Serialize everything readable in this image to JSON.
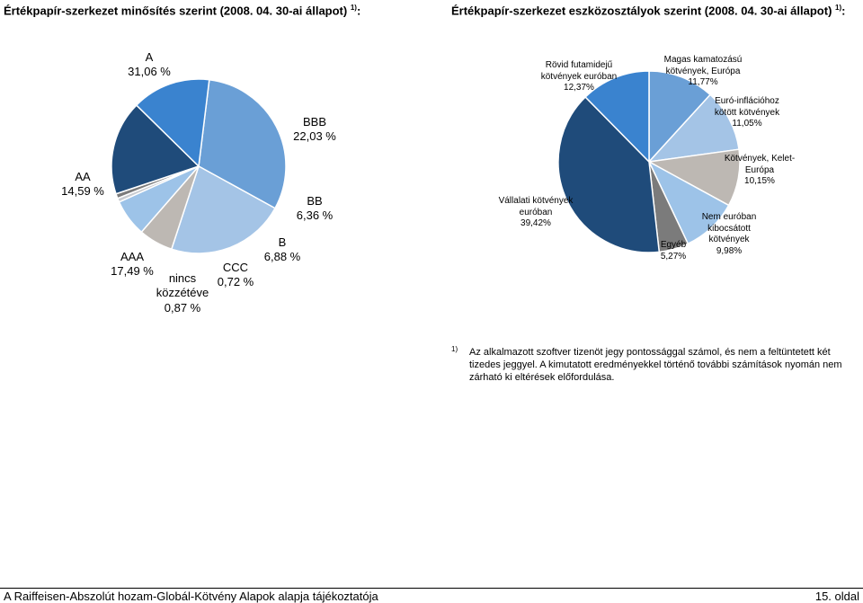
{
  "chart_data": [
    {
      "type": "pie",
      "title": "Értékpapír-szerkezet minősítés szerint (2008. 04. 30-ai állapot)",
      "title_sup": "1)",
      "title_suffix": ":",
      "slices": [
        {
          "label": "A",
          "value": 31.06,
          "display": "31,06 %",
          "color": "#6a9fd6"
        },
        {
          "label": "BBB",
          "value": 22.03,
          "display": "22,03 %",
          "color": "#a4c4e6"
        },
        {
          "label": "BB",
          "value": 6.36,
          "display": "6,36 %",
          "color": "#bdb8b3"
        },
        {
          "label": "B",
          "value": 6.88,
          "display": "6,88 %",
          "color": "#9dc3e8"
        },
        {
          "label": "CCC",
          "value": 0.72,
          "display": "0,72 %",
          "color": "#c8cbd0"
        },
        {
          "label": "nincs közzétéve",
          "value": 0.87,
          "display": "0,87 %",
          "color": "#7b7b7b"
        },
        {
          "label": "AAA",
          "value": 17.49,
          "display": "17,49 %",
          "color": "#1f4b7a"
        },
        {
          "label": "AA",
          "value": 14.59,
          "display": "14,59 %",
          "color": "#3a83cf"
        }
      ]
    },
    {
      "type": "pie",
      "title": "Értékpapír-szerkezet eszközosztályok szerint (2008. 04. 30-ai állapot)",
      "title_sup": "1)",
      "title_suffix": ":",
      "slices": [
        {
          "label": "Magas kamatozású kötvények, Európa",
          "value": 11.77,
          "display": "11,77%",
          "color": "#6a9fd6"
        },
        {
          "label": "Euró-inflációhoz kötött kötvények",
          "value": 11.05,
          "display": "11,05%",
          "color": "#a4c4e6"
        },
        {
          "label": "Kötvények, Kelet-Európa",
          "value": 10.15,
          "display": "10,15%",
          "color": "#bdb8b3"
        },
        {
          "label": "Nem euróban kibocsátott kötvények",
          "value": 9.98,
          "display": "9,98%",
          "color": "#9dc3e8"
        },
        {
          "label": "Egyéb",
          "value": 5.27,
          "display": "5,27%",
          "color": "#7b7b7b"
        },
        {
          "label": "Vállalati kötvények euróban",
          "value": 39.42,
          "display": "39,42%",
          "color": "#1f4b7a"
        },
        {
          "label": "Rövid futamidejű kötvények euróban",
          "value": 12.37,
          "display": "12,37%",
          "color": "#3a83cf"
        }
      ]
    }
  ],
  "labels_left": {
    "a_name": "A",
    "a_val": "31,06 %",
    "bbb_name": "BBB",
    "bbb_val": "22,03 %",
    "aa_name": "AA",
    "aa_val": "14,59 %",
    "bb_name": "BB",
    "bb_val": "6,36 %",
    "b_name": "B",
    "b_val": "6,88 %",
    "aaa_name": "AAA",
    "aaa_val": "17,49 %",
    "ccc_name": "CCC",
    "ccc_val": "0,72 %",
    "nincs_l1": "nincs",
    "nincs_l2": "közzétéve",
    "nincs_val": "0,87 %"
  },
  "labels_right": {
    "rovid_l1": "Rövid futamidejű",
    "rovid_l2": "kötvények euróban",
    "rovid_val": "12,37%",
    "magas_l1": "Magas kamatozású",
    "magas_l2": "kötvények, Európa",
    "magas_val": "11,77%",
    "euro_l1": "Euró-inflációhoz",
    "euro_l2": "kötött kötvények",
    "euro_val": "11,05%",
    "kelet_l1": "Kötvények, Kelet-",
    "kelet_l2": "Európa",
    "kelet_val": "10,15%",
    "vallalati_l1": "Vállalati kötvények",
    "vallalati_l2": "euróban",
    "vallalati_val": "39,42%",
    "nem_l1": "Nem euróban",
    "nem_l2": "kibocsátott",
    "nem_l3": "kötvények",
    "nem_val": "9,98%",
    "egyeb_l1": "Egyéb",
    "egyeb_val": "5,27%"
  },
  "footnote": {
    "mark": "1)",
    "text": "Az alkalmazott szoftver tizenöt jegy pontossággal számol, és nem a feltüntetett két tizedes jeggyel. A kimutatott eredményekkel történő további számítások nyomán nem zárható ki eltérések előfordulása."
  },
  "footer": {
    "left": "A Raiffeisen-Abszolút hozam-Globál-Kötvény Alapok alapja tájékoztatója",
    "right": "15. oldal"
  }
}
